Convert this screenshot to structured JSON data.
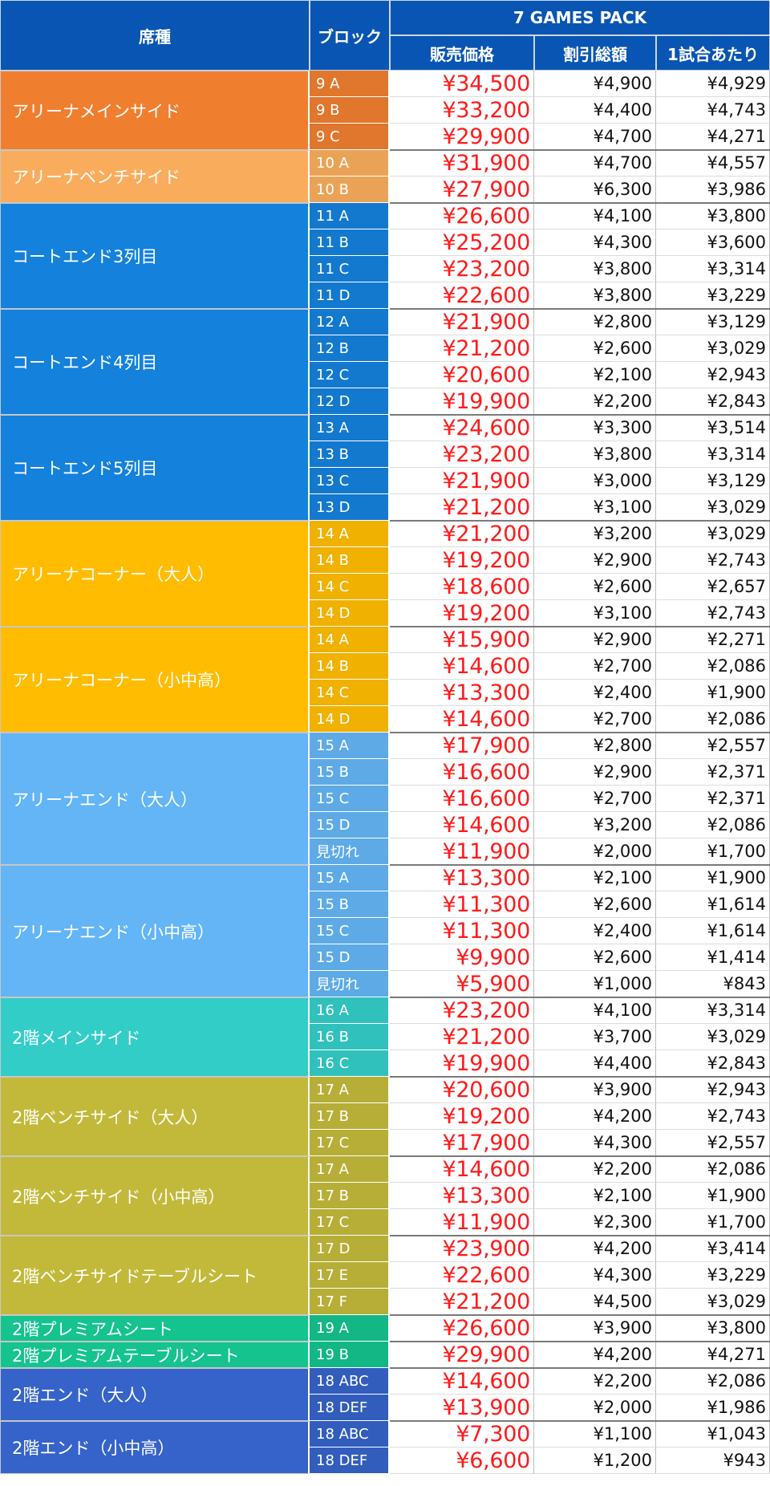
{
  "header": {
    "seat_type": "席種",
    "block": "ブロック",
    "pack": "7 GAMES PACK",
    "sale_price": "販売価格",
    "discount_total": "割引総額",
    "per_game": "1試合あたり"
  },
  "groups": [
    {
      "name": "アリーナメインサイド",
      "color": "#ef7f2f",
      "rows": [
        {
          "block": "9 A",
          "price": "¥34,500",
          "discount": "¥4,900",
          "per_game": "¥4,929"
        },
        {
          "block": "9 B",
          "price": "¥33,200",
          "discount": "¥4,400",
          "per_game": "¥4,743"
        },
        {
          "block": "9 C",
          "price": "¥29,900",
          "discount": "¥4,700",
          "per_game": "¥4,271"
        }
      ]
    },
    {
      "name": "アリーナベンチサイド",
      "color": "#f9ad5c",
      "rows": [
        {
          "block": "10 A",
          "price": "¥31,900",
          "discount": "¥4,700",
          "per_game": "¥4,557"
        },
        {
          "block": "10 B",
          "price": "¥27,900",
          "discount": "¥6,300",
          "per_game": "¥3,986"
        }
      ]
    },
    {
      "name": "コートエンド3列目",
      "color": "#1481dc",
      "rows": [
        {
          "block": "11 A",
          "price": "¥26,600",
          "discount": "¥4,100",
          "per_game": "¥3,800"
        },
        {
          "block": "11 B",
          "price": "¥25,200",
          "discount": "¥4,300",
          "per_game": "¥3,600"
        },
        {
          "block": "11 C",
          "price": "¥23,200",
          "discount": "¥3,800",
          "per_game": "¥3,314"
        },
        {
          "block": "11 D",
          "price": "¥22,600",
          "discount": "¥3,800",
          "per_game": "¥3,229"
        }
      ]
    },
    {
      "name": "コートエンド4列目",
      "color": "#1481dc",
      "rows": [
        {
          "block": "12 A",
          "price": "¥21,900",
          "discount": "¥2,800",
          "per_game": "¥3,129"
        },
        {
          "block": "12 B",
          "price": "¥21,200",
          "discount": "¥2,600",
          "per_game": "¥3,029"
        },
        {
          "block": "12 C",
          "price": "¥20,600",
          "discount": "¥2,100",
          "per_game": "¥2,943"
        },
        {
          "block": "12 D",
          "price": "¥19,900",
          "discount": "¥2,200",
          "per_game": "¥2,843"
        }
      ]
    },
    {
      "name": "コートエンド5列目",
      "color": "#1481dc",
      "rows": [
        {
          "block": "13 A",
          "price": "¥24,600",
          "discount": "¥3,300",
          "per_game": "¥3,514"
        },
        {
          "block": "13 B",
          "price": "¥23,200",
          "discount": "¥3,800",
          "per_game": "¥3,314"
        },
        {
          "block": "13 C",
          "price": "¥21,900",
          "discount": "¥3,000",
          "per_game": "¥3,129"
        },
        {
          "block": "13 D",
          "price": "¥21,200",
          "discount": "¥3,100",
          "per_game": "¥3,029"
        }
      ]
    },
    {
      "name": "アリーナコーナー（大人）",
      "color": "#ffbc00",
      "rows": [
        {
          "block": "14 A",
          "price": "¥21,200",
          "discount": "¥3,200",
          "per_game": "¥3,029"
        },
        {
          "block": "14 B",
          "price": "¥19,200",
          "discount": "¥2,900",
          "per_game": "¥2,743"
        },
        {
          "block": "14 C",
          "price": "¥18,600",
          "discount": "¥2,600",
          "per_game": "¥2,657"
        },
        {
          "block": "14 D",
          "price": "¥19,200",
          "discount": "¥3,100",
          "per_game": "¥2,743"
        }
      ]
    },
    {
      "name": "アリーナコーナー（小中高）",
      "color": "#ffbc00",
      "rows": [
        {
          "block": "14 A",
          "price": "¥15,900",
          "discount": "¥2,900",
          "per_game": "¥2,271"
        },
        {
          "block": "14 B",
          "price": "¥14,600",
          "discount": "¥2,700",
          "per_game": "¥2,086"
        },
        {
          "block": "14 C",
          "price": "¥13,300",
          "discount": "¥2,400",
          "per_game": "¥1,900"
        },
        {
          "block": "14 D",
          "price": "¥14,600",
          "discount": "¥2,700",
          "per_game": "¥2,086"
        }
      ]
    },
    {
      "name": "アリーナエンド（大人）",
      "color": "#63b5f5",
      "rows": [
        {
          "block": "15 A",
          "price": "¥17,900",
          "discount": "¥2,800",
          "per_game": "¥2,557"
        },
        {
          "block": "15 B",
          "price": "¥16,600",
          "discount": "¥2,900",
          "per_game": "¥2,371"
        },
        {
          "block": "15 C",
          "price": "¥16,600",
          "discount": "¥2,700",
          "per_game": "¥2,371"
        },
        {
          "block": "15 D",
          "price": "¥14,600",
          "discount": "¥3,200",
          "per_game": "¥2,086"
        },
        {
          "block": "見切れ",
          "price": "¥11,900",
          "discount": "¥2,000",
          "per_game": "¥1,700"
        }
      ]
    },
    {
      "name": "アリーナエンド（小中高）",
      "color": "#63b5f5",
      "rows": [
        {
          "block": "15 A",
          "price": "¥13,300",
          "discount": "¥2,100",
          "per_game": "¥1,900"
        },
        {
          "block": "15 B",
          "price": "¥11,300",
          "discount": "¥2,600",
          "per_game": "¥1,614"
        },
        {
          "block": "15 C",
          "price": "¥11,300",
          "discount": "¥2,400",
          "per_game": "¥1,614"
        },
        {
          "block": "15 D",
          "price": "¥9,900",
          "discount": "¥2,600",
          "per_game": "¥1,414"
        },
        {
          "block": "見切れ",
          "price": "¥5,900",
          "discount": "¥1,000",
          "per_game": "¥843"
        }
      ]
    },
    {
      "name": "2階メインサイド",
      "color": "#33cdc8",
      "rows": [
        {
          "block": "16 A",
          "price": "¥23,200",
          "discount": "¥4,100",
          "per_game": "¥3,314"
        },
        {
          "block": "16 B",
          "price": "¥21,200",
          "discount": "¥3,700",
          "per_game": "¥3,029"
        },
        {
          "block": "16 C",
          "price": "¥19,900",
          "discount": "¥4,400",
          "per_game": "¥2,843"
        }
      ]
    },
    {
      "name": "2階ベンチサイド（大人）",
      "color": "#c2b93a",
      "rows": [
        {
          "block": "17 A",
          "price": "¥20,600",
          "discount": "¥3,900",
          "per_game": "¥2,943"
        },
        {
          "block": "17 B",
          "price": "¥19,200",
          "discount": "¥4,200",
          "per_game": "¥2,743"
        },
        {
          "block": "17 C",
          "price": "¥17,900",
          "discount": "¥4,300",
          "per_game": "¥2,557"
        }
      ]
    },
    {
      "name": "2階ベンチサイド（小中高）",
      "color": "#c2b93a",
      "rows": [
        {
          "block": "17 A",
          "price": "¥14,600",
          "discount": "¥2,200",
          "per_game": "¥2,086"
        },
        {
          "block": "17 B",
          "price": "¥13,300",
          "discount": "¥2,100",
          "per_game": "¥1,900"
        },
        {
          "block": "17 C",
          "price": "¥11,900",
          "discount": "¥2,300",
          "per_game": "¥1,700"
        }
      ]
    },
    {
      "name": "2階ベンチサイドテーブルシート",
      "color": "#c2b93a",
      "rows": [
        {
          "block": "17 D",
          "price": "¥23,900",
          "discount": "¥4,200",
          "per_game": "¥3,414"
        },
        {
          "block": "17 E",
          "price": "¥22,600",
          "discount": "¥4,300",
          "per_game": "¥3,229"
        },
        {
          "block": "17 F",
          "price": "¥21,200",
          "discount": "¥4,500",
          "per_game": "¥3,029"
        }
      ]
    },
    {
      "name": "2階プレミアムシート",
      "color": "#14c38e",
      "rows": [
        {
          "block": "19 A",
          "price": "¥26,600",
          "discount": "¥3,900",
          "per_game": "¥3,800"
        }
      ]
    },
    {
      "name": "2階プレミアムテーブルシート",
      "color": "#14c38e",
      "rows": [
        {
          "block": "19 B",
          "price": "¥29,900",
          "discount": "¥4,200",
          "per_game": "¥4,271"
        }
      ]
    },
    {
      "name": "2階エンド（大人）",
      "color": "#3563c9",
      "rows": [
        {
          "block": "18 ABC",
          "price": "¥14,600",
          "discount": "¥2,200",
          "per_game": "¥2,086"
        },
        {
          "block": "18 DEF",
          "price": "¥13,900",
          "discount": "¥2,000",
          "per_game": "¥1,986"
        }
      ]
    },
    {
      "name": "2階エンド（小中高）",
      "color": "#3563c9",
      "rows": [
        {
          "block": "18 ABC",
          "price": "¥7,300",
          "discount": "¥1,100",
          "per_game": "¥1,043"
        },
        {
          "block": "18 DEF",
          "price": "¥6,600",
          "discount": "¥1,200",
          "per_game": "¥943"
        }
      ]
    }
  ]
}
